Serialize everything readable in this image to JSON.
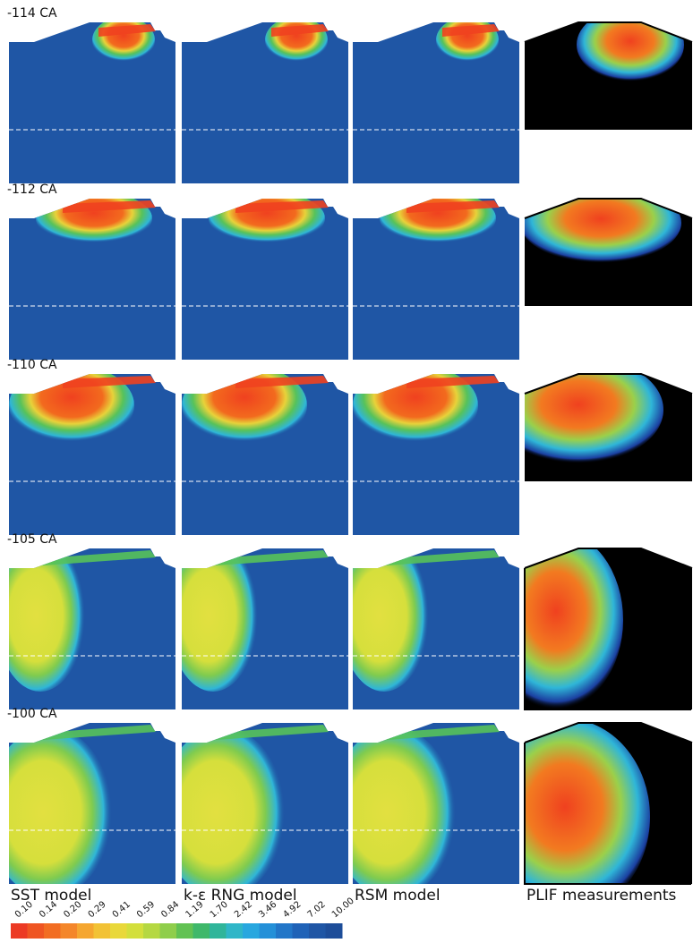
{
  "figure": {
    "rows": [
      "-114 CA",
      "-112 CA",
      "-110 CA",
      "-105 CA",
      "-100 CA"
    ],
    "columns": [
      "SST model",
      "k-ε RNG model",
      "RSM model",
      "PLIF measurements"
    ],
    "colorbar_ticks": [
      "0.10",
      "0.14",
      "0.20",
      "0.29",
      "0.41",
      "0.59",
      "0.84",
      "1.19",
      "1.70",
      "2.42",
      "3.46",
      "4.92",
      "7.02",
      "10.00"
    ]
  }
}
